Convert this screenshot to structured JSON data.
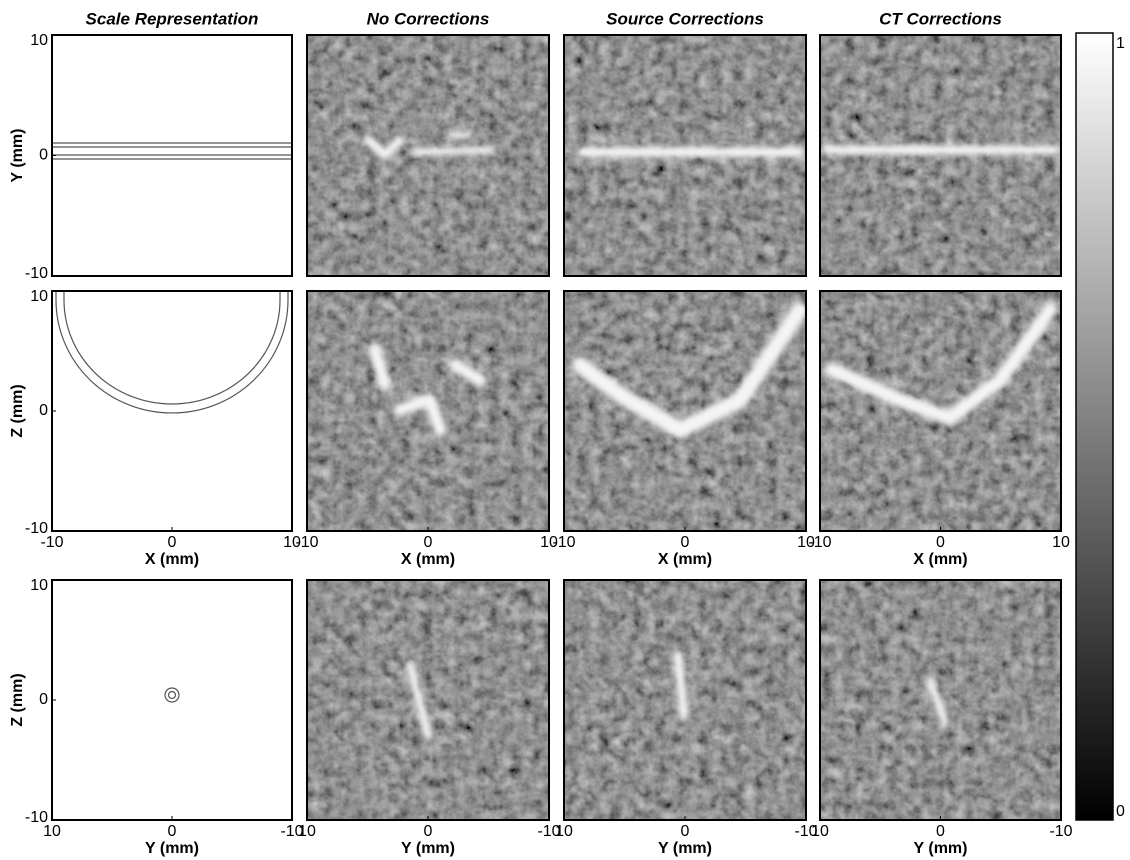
{
  "chart_data": {
    "type": "image-grid",
    "column_titles": [
      "Scale Representation",
      "No Corrections",
      "Source Corrections",
      "CT Corrections"
    ],
    "rows": [
      {
        "ylabel": "Y (mm)",
        "ylim": [
          -10,
          10
        ],
        "yticks": [
          -10,
          0,
          10
        ]
      },
      {
        "ylabel": "Z (mm)",
        "ylim": [
          -10,
          10
        ],
        "yticks": [
          -10,
          0,
          10
        ],
        "xlabel": "X (mm)",
        "xlim": [
          -10,
          10
        ],
        "xticks": [
          -10,
          0,
          10
        ]
      },
      {
        "ylabel": "Z (mm)",
        "ylim": [
          -10,
          10
        ],
        "yticks": [
          -10,
          0,
          10
        ],
        "xlabel": "Y (mm)",
        "xlim": [
          10,
          -10
        ],
        "xticks": [
          10,
          0,
          -10
        ]
      }
    ],
    "colorbar": {
      "lim": [
        0,
        1
      ],
      "ticks": [
        0,
        1
      ]
    }
  }
}
